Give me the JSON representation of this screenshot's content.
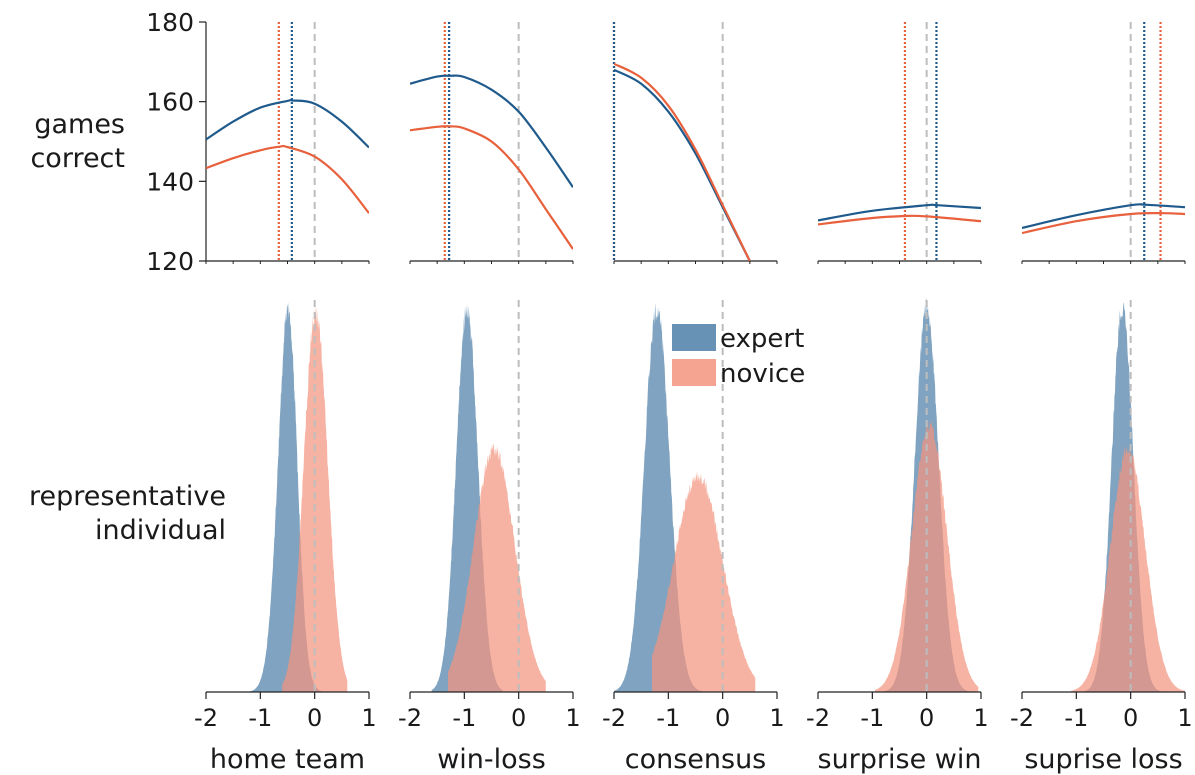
{
  "labels": {
    "top_row": [
      "games",
      "correct"
    ],
    "bottom_row": [
      "representative",
      "individual"
    ]
  },
  "colors": {
    "expert": "#1f5a8c",
    "novice": "#e8603c",
    "expert_fill": "#4e7fa8",
    "novice_fill": "#f3947e",
    "reference": "#bdbdbd"
  },
  "chart_data": [
    {
      "type": "line",
      "row": "top",
      "ylabel": "games correct",
      "ylim": [
        120,
        180
      ],
      "yticks": [
        120,
        140,
        160,
        180
      ],
      "xlim": [
        -2,
        1
      ],
      "shared_x_across_panels": true,
      "panels": [
        {
          "name": "home team",
          "series": [
            {
              "name": "expert",
              "x": [
                -2,
                -1.5,
                -1,
                -0.5,
                -0.4,
                0,
                0.5,
                1
              ],
              "y": [
                150.5,
                155,
                158.5,
                160.2,
                160.3,
                159.5,
                155,
                148.5
              ]
            },
            {
              "name": "novice",
              "x": [
                -2,
                -1.5,
                -1,
                -0.65,
                -0.5,
                0,
                0.5,
                1
              ],
              "y": [
                143.3,
                145.8,
                147.8,
                148.7,
                148.6,
                146.2,
                140.5,
                132
              ]
            }
          ],
          "optimum": {
            "expert": -0.42,
            "novice": -0.66
          },
          "reference_x": 0
        },
        {
          "name": "win-loss",
          "series": [
            {
              "name": "expert",
              "x": [
                -2,
                -1.5,
                -1.25,
                -1,
                -0.5,
                0,
                0.5,
                1
              ],
              "y": [
                164.5,
                166.3,
                166.5,
                166.2,
                163,
                157.5,
                148.5,
                138.5
              ]
            },
            {
              "name": "novice",
              "x": [
                -2,
                -1.5,
                -1.25,
                -1,
                -0.5,
                0,
                0.5,
                1
              ],
              "y": [
                152.8,
                153.7,
                153.8,
                153.3,
                150,
                143,
                133,
                123
              ]
            }
          ],
          "optimum": {
            "expert": -1.28,
            "novice": -1.36
          },
          "reference_x": 0
        },
        {
          "name": "consensus",
          "series": [
            {
              "name": "expert",
              "x": [
                -2,
                -1.5,
                -1,
                -0.5,
                0,
                0.5
              ],
              "y": [
                168,
                164.5,
                157.5,
                147,
                133.5,
                120
              ]
            },
            {
              "name": "novice",
              "x": [
                -2,
                -1.5,
                -1,
                -0.5,
                0,
                0.5
              ],
              "y": [
                169.5,
                166,
                159,
                148,
                134,
                120
              ]
            }
          ],
          "optimum": {
            "expert": -2,
            "novice": -2
          },
          "reference_x": 0
        },
        {
          "name": "surprise win",
          "series": [
            {
              "name": "expert",
              "x": [
                -2,
                -1,
                0,
                0.2,
                1
              ],
              "y": [
                130.2,
                132.6,
                134,
                134,
                133.3
              ]
            },
            {
              "name": "novice",
              "x": [
                -2,
                -1,
                -0.4,
                0,
                1
              ],
              "y": [
                129.2,
                130.8,
                131.3,
                131.2,
                130
              ]
            }
          ],
          "optimum": {
            "expert": 0.18,
            "novice": -0.4
          },
          "reference_x": 0
        },
        {
          "name": "suprise loss",
          "series": [
            {
              "name": "expert",
              "x": [
                -2,
                -1,
                0,
                0.3,
                1
              ],
              "y": [
                128.3,
                131.5,
                134,
                134.1,
                133.5
              ]
            },
            {
              "name": "novice",
              "x": [
                -2,
                -1,
                0,
                0.6,
                1
              ],
              "y": [
                127,
                130,
                131.8,
                132,
                131.8
              ]
            }
          ],
          "optimum": {
            "expert": 0.25,
            "novice": 0.55
          },
          "reference_x": 0
        }
      ]
    },
    {
      "type": "area",
      "row": "bottom",
      "ylabel": "representative individual",
      "xlim": [
        -2,
        1
      ],
      "xticks": [
        -2,
        -1,
        0,
        1
      ],
      "xtick_labels": [
        "-2",
        "-1",
        "0",
        "1"
      ],
      "legend": {
        "entries": [
          "expert",
          "novice"
        ],
        "placement": "top-center"
      },
      "panels": [
        {
          "name": "home team",
          "expert": {
            "mean": -0.38,
            "sd": 0.22,
            "skew": -1.0,
            "range": [
              -1.2,
              0.2
            ]
          },
          "novice": {
            "mean": 0.02,
            "sd": 0.22,
            "skew": 0,
            "range": [
              -0.6,
              0.6
            ]
          }
        },
        {
          "name": "win-loss",
          "expert": {
            "mean": -0.95,
            "sd": 0.2,
            "skew": 0,
            "range": [
              -1.6,
              -0.3
            ]
          },
          "novice": {
            "mean": -0.45,
            "sd": 0.38,
            "skew": 0,
            "range": [
              -1.3,
              0.5
            ]
          }
        },
        {
          "name": "consensus",
          "expert": {
            "mean": -1.3,
            "sd": 0.25,
            "skew": 0.5,
            "range": [
              -2.0,
              -0.2
            ]
          },
          "novice": {
            "mean": -0.45,
            "sd": 0.45,
            "skew": 0,
            "range": [
              -1.3,
              0.6
            ]
          }
        },
        {
          "name": "surprise win",
          "expert": {
            "mean": 0.0,
            "sd": 0.22,
            "skew": 0,
            "range": [
              -0.85,
              0.85
            ]
          },
          "novice": {
            "mean": 0.05,
            "sd": 0.32,
            "skew": 0,
            "range": [
              -0.95,
              0.95
            ]
          }
        },
        {
          "name": "suprise loss",
          "expert": {
            "mean": -0.15,
            "sd": 0.2,
            "skew": 0,
            "range": [
              -0.95,
              0.8
            ]
          },
          "novice": {
            "mean": -0.05,
            "sd": 0.32,
            "skew": 0,
            "range": [
              -1.1,
              1.0
            ]
          }
        }
      ]
    }
  ]
}
